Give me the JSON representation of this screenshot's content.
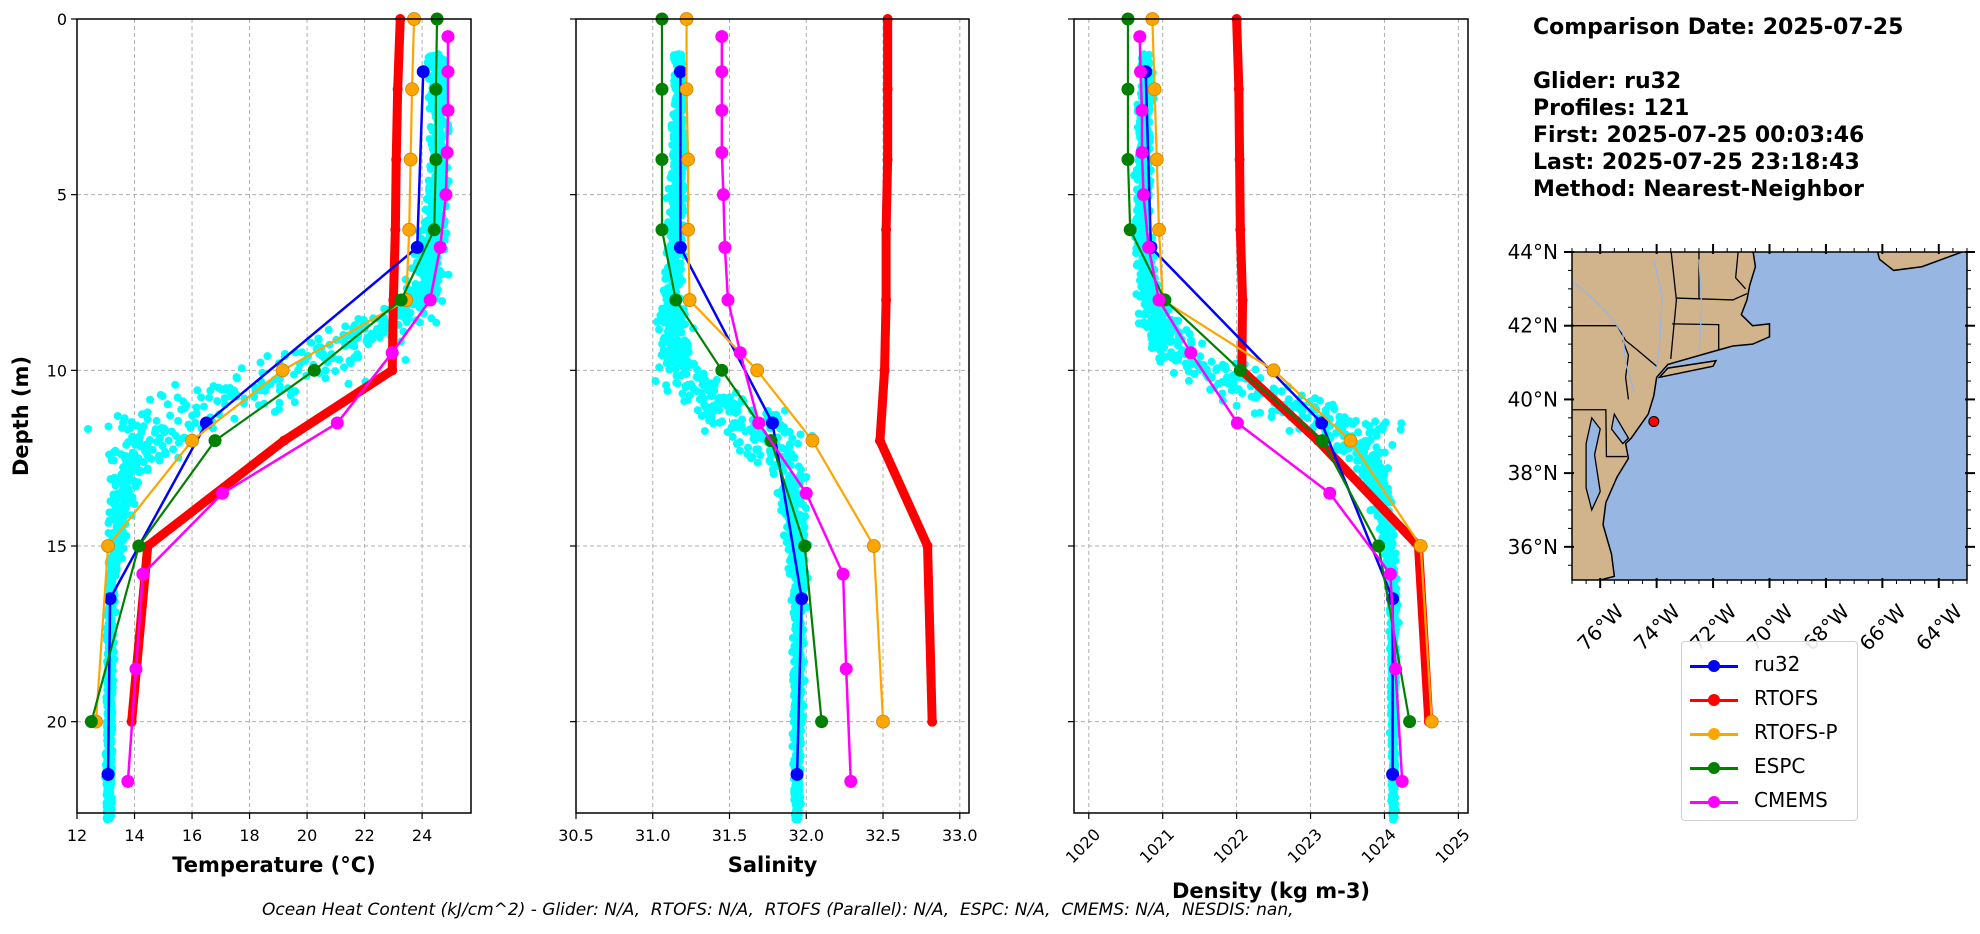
{
  "chart_data": [
    {
      "type": "line",
      "panel": "temperature",
      "xlabel": "Temperature (°C)",
      "ylabel": "Depth (m)",
      "xlim": [
        12,
        25.7
      ],
      "ylim": [
        22.6,
        0
      ],
      "xticks": [
        12,
        14,
        16,
        18,
        20,
        22,
        24
      ],
      "yticks": [
        0,
        5,
        10,
        15,
        20
      ],
      "grid": true,
      "series": [
        {
          "name": "RTOFS",
          "color": "#ff0000",
          "depth": [
            0,
            2,
            4,
            6,
            8,
            10,
            12,
            15,
            20
          ],
          "values": [
            23.24,
            23.15,
            23.1,
            23.07,
            23.0,
            22.96,
            19.2,
            14.46,
            13.9
          ]
        },
        {
          "name": "RTOFS-P",
          "color": "#ffa500",
          "depth": [
            0,
            2,
            4,
            6,
            8,
            10,
            12,
            15,
            20
          ],
          "values": [
            23.72,
            23.65,
            23.6,
            23.55,
            23.45,
            19.15,
            16.0,
            13.08,
            12.66
          ]
        },
        {
          "name": "ESPC",
          "color": "#008000",
          "depth": [
            0,
            2,
            4,
            6,
            8,
            10,
            12,
            15,
            20
          ],
          "values": [
            24.52,
            24.48,
            24.48,
            24.42,
            23.27,
            20.25,
            16.8,
            14.15,
            12.5
          ]
        },
        {
          "name": "ru32",
          "color": "#0000ff",
          "depth": [
            1.5,
            6.5,
            11.5,
            16.5,
            21.5
          ],
          "values": [
            24.04,
            23.83,
            16.5,
            13.15,
            13.08
          ]
        },
        {
          "name": "CMEMS",
          "color": "#ff00ff",
          "depth": [
            0.5,
            1.5,
            2.6,
            3.8,
            5.0,
            6.5,
            8.0,
            9.5,
            11.5,
            13.5,
            15.8,
            18.5,
            21.7
          ],
          "values": [
            24.9,
            24.9,
            24.9,
            24.87,
            24.83,
            24.63,
            24.28,
            22.96,
            21.05,
            17.06,
            14.29,
            14.05,
            13.77
          ]
        }
      ]
    },
    {
      "type": "line",
      "panel": "salinity",
      "xlabel": "Salinity",
      "ylabel": "",
      "xlim": [
        30.5,
        33.06
      ],
      "ylim": [
        22.6,
        0
      ],
      "xticks": [
        "30.5",
        "31.0",
        "31.5",
        "32.0",
        "32.5",
        "33.0"
      ],
      "yticks": [
        0,
        5,
        10,
        15,
        20
      ],
      "grid": true,
      "series": [
        {
          "name": "RTOFS",
          "color": "#ff0000",
          "depth": [
            0,
            2,
            4,
            6,
            8,
            10,
            12,
            15,
            20
          ],
          "values": [
            32.53,
            32.53,
            32.53,
            32.52,
            32.52,
            32.51,
            32.48,
            32.79,
            32.82
          ]
        },
        {
          "name": "RTOFS-P",
          "color": "#ffa500",
          "depth": [
            0,
            2,
            4,
            6,
            8,
            10,
            12,
            15,
            20
          ],
          "values": [
            31.22,
            31.22,
            31.23,
            31.23,
            31.24,
            31.68,
            32.04,
            32.44,
            32.5
          ]
        },
        {
          "name": "ESPC",
          "color": "#008000",
          "depth": [
            0,
            2,
            4,
            6,
            8,
            10,
            12,
            15,
            20
          ],
          "values": [
            31.06,
            31.06,
            31.06,
            31.06,
            31.15,
            31.45,
            31.77,
            31.99,
            32.1
          ]
        },
        {
          "name": "ru32",
          "color": "#0000ff",
          "depth": [
            1.5,
            6.5,
            11.5,
            16.5,
            21.5
          ],
          "values": [
            31.18,
            31.18,
            31.78,
            31.97,
            31.94
          ]
        },
        {
          "name": "CMEMS",
          "color": "#ff00ff",
          "depth": [
            0.5,
            1.5,
            2.6,
            3.8,
            5.0,
            6.5,
            8.0,
            9.5,
            11.5,
            13.5,
            15.8,
            18.5,
            21.7
          ],
          "values": [
            31.45,
            31.45,
            31.45,
            31.45,
            31.46,
            31.47,
            31.49,
            31.57,
            31.69,
            32.0,
            32.24,
            32.26,
            32.29
          ]
        }
      ]
    },
    {
      "type": "line",
      "panel": "density",
      "xlabel": "Density (kg m-3)",
      "ylabel": "",
      "xlim": [
        1019.8,
        1025.13
      ],
      "ylim": [
        22.6,
        0
      ],
      "xticks": [
        1020,
        1021,
        1022,
        1023,
        1024,
        1025
      ],
      "yticks": [
        0,
        5,
        10,
        15,
        20
      ],
      "grid": true,
      "series": [
        {
          "name": "RTOFS",
          "color": "#ff0000",
          "depth": [
            0,
            2,
            4,
            6,
            8,
            10,
            12,
            15,
            20
          ],
          "values": [
            1022.0,
            1022.03,
            1022.04,
            1022.05,
            1022.08,
            1022.07,
            1023.1,
            1024.46,
            1024.6
          ]
        },
        {
          "name": "RTOFS-P",
          "color": "#ffa500",
          "depth": [
            0,
            2,
            4,
            6,
            8,
            10,
            12,
            15,
            20
          ],
          "values": [
            1020.86,
            1020.89,
            1020.92,
            1020.95,
            1021.0,
            1022.5,
            1023.54,
            1024.49,
            1024.64
          ]
        },
        {
          "name": "ESPC",
          "color": "#008000",
          "depth": [
            0,
            2,
            4,
            6,
            8,
            10,
            12,
            15,
            20
          ],
          "values": [
            1020.53,
            1020.53,
            1020.53,
            1020.56,
            1021.03,
            1022.05,
            1023.16,
            1023.92,
            1024.34
          ]
        },
        {
          "name": "ru32",
          "color": "#0000ff",
          "depth": [
            1.5,
            6.5,
            11.5,
            16.5,
            21.5
          ],
          "values": [
            1020.77,
            1020.84,
            1023.15,
            1024.11,
            1024.11
          ]
        },
        {
          "name": "CMEMS",
          "color": "#ff00ff",
          "depth": [
            0.5,
            1.5,
            2.6,
            3.8,
            5.0,
            6.5,
            8.0,
            9.5,
            11.5,
            13.5,
            15.8,
            18.5,
            21.7
          ],
          "values": [
            1020.69,
            1020.7,
            1020.72,
            1020.72,
            1020.74,
            1020.81,
            1020.95,
            1021.38,
            1022.01,
            1023.26,
            1024.08,
            1024.15,
            1024.24
          ]
        }
      ]
    },
    {
      "type": "map",
      "panel": "glider-location",
      "lon_range": [
        -77.0,
        -63.0
      ],
      "lat_range": [
        35.1,
        44.0
      ],
      "xticks": [
        "76°W",
        "74°W",
        "72°W",
        "70°W",
        "68°W",
        "66°W",
        "64°W"
      ],
      "yticks": [
        "44°N",
        "42°N",
        "40°N",
        "38°N",
        "36°N"
      ],
      "xtick_values": [
        -76,
        -74,
        -72,
        -70,
        -68,
        -66,
        -64
      ],
      "ytick_values": [
        44,
        42,
        40,
        38,
        36
      ],
      "glider_position": {
        "lon": -74.1,
        "lat": 39.4
      },
      "land_color": "#d2b48c",
      "ocean_color": "#97b6e1"
    }
  ],
  "glider_scatter": {
    "color": "#00ffff",
    "label": "Glider observations (all profiles)"
  },
  "info": {
    "comparison_date": "Comparison Date: 2025-07-25",
    "glider": "Glider: ru32",
    "profiles": "Profiles: 121",
    "first": "First: 2025-07-25 00:03:46",
    "last": "Last: 2025-07-25 23:18:43",
    "method": "Method: Nearest-Neighbor"
  },
  "legend": [
    {
      "label": "ru32",
      "color": "#0000ff"
    },
    {
      "label": "RTOFS",
      "color": "#ff0000"
    },
    {
      "label": "RTOFS-P",
      "color": "#ffa500"
    },
    {
      "label": "ESPC",
      "color": "#008000"
    },
    {
      "label": "CMEMS",
      "color": "#ff00ff"
    }
  ],
  "caption": "Ocean Heat Content (kJ/cm^2) - Glider: N/A,  RTOFS: N/A,  RTOFS (Parallel): N/A,  ESPC: N/A,  CMEMS: N/A,  NESDIS: nan,"
}
